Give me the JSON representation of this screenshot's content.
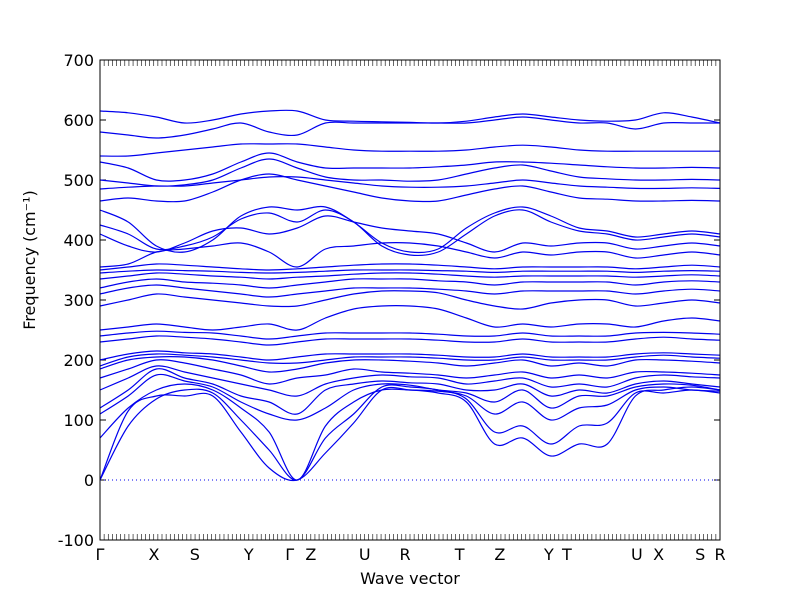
{
  "chart_data": {
    "type": "line",
    "title": "",
    "xlabel": "Wave vector",
    "ylabel": "Frequency (cm⁻¹)",
    "ylim": [
      -100,
      700
    ],
    "yticks": [
      -100,
      0,
      100,
      200,
      300,
      400,
      500,
      600,
      700
    ],
    "xticks": [
      {
        "label": "Γ",
        "pos": 0.0
      },
      {
        "label": "X",
        "pos": 0.087
      },
      {
        "label": "S",
        "pos": 0.153
      },
      {
        "label": "Y",
        "pos": 0.24
      },
      {
        "label": "Γ",
        "pos": 0.306
      },
      {
        "label": "Z",
        "pos": 0.34
      },
      {
        "label": "U",
        "pos": 0.427
      },
      {
        "label": "R",
        "pos": 0.492
      },
      {
        "label": "T",
        "pos": 0.58
      },
      {
        "label": "Z",
        "pos": 0.645
      },
      {
        "label": "Y",
        "pos": 0.724
      },
      {
        "label": "T",
        "pos": 0.753
      },
      {
        "label": "U",
        "pos": 0.866
      },
      {
        "label": "X",
        "pos": 0.901
      },
      {
        "label": "S",
        "pos": 0.968
      },
      {
        "label": "R",
        "pos": 1.0
      }
    ],
    "zero_line": 0,
    "line_color": "#0000ee",
    "series": [
      {
        "values": [
          0,
          115,
          140,
          140,
          140,
          80,
          20,
          0,
          45,
          95,
          150,
          150,
          145,
          130,
          60,
          70,
          40,
          60,
          60,
          140,
          150,
          155,
          150
        ]
      },
      {
        "values": [
          0,
          90,
          135,
          150,
          145,
          100,
          50,
          0,
          70,
          110,
          155,
          155,
          150,
          135,
          80,
          90,
          60,
          90,
          95,
          145,
          145,
          150,
          145
        ]
      },
      {
        "values": [
          70,
          120,
          150,
          160,
          150,
          120,
          80,
          0,
          90,
          130,
          150,
          150,
          148,
          140,
          110,
          130,
          100,
          120,
          125,
          150,
          155,
          150,
          148
        ]
      },
      {
        "values": [
          110,
          140,
          175,
          165,
          155,
          130,
          110,
          100,
          120,
          150,
          160,
          158,
          150,
          145,
          130,
          150,
          120,
          140,
          140,
          155,
          160,
          158,
          150
        ]
      },
      {
        "values": [
          120,
          150,
          185,
          170,
          160,
          140,
          130,
          110,
          150,
          160,
          165,
          162,
          160,
          150,
          150,
          160,
          140,
          150,
          145,
          160,
          165,
          160,
          155
        ]
      },
      {
        "values": [
          150,
          170,
          190,
          180,
          170,
          160,
          150,
          140,
          160,
          170,
          175,
          172,
          170,
          160,
          165,
          170,
          155,
          160,
          155,
          170,
          175,
          172,
          170
        ]
      },
      {
        "values": [
          170,
          185,
          200,
          195,
          185,
          175,
          160,
          170,
          175,
          185,
          180,
          178,
          175,
          170,
          175,
          180,
          170,
          175,
          170,
          180,
          180,
          178,
          175
        ]
      },
      {
        "values": [
          185,
          200,
          205,
          205,
          200,
          190,
          180,
          185,
          195,
          200,
          200,
          198,
          195,
          190,
          195,
          200,
          190,
          195,
          190,
          200,
          200,
          198,
          195
        ]
      },
      {
        "values": [
          190,
          205,
          210,
          208,
          205,
          200,
          195,
          195,
          200,
          205,
          205,
          205,
          203,
          200,
          200,
          205,
          200,
          200,
          200,
          205,
          208,
          205,
          203
        ]
      },
      {
        "values": [
          200,
          210,
          215,
          212,
          210,
          205,
          200,
          205,
          210,
          210,
          210,
          210,
          208,
          205,
          205,
          210,
          205,
          205,
          205,
          210,
          212,
          210,
          208
        ]
      },
      {
        "values": [
          230,
          235,
          240,
          238,
          235,
          230,
          225,
          230,
          235,
          235,
          235,
          235,
          233,
          230,
          230,
          235,
          230,
          230,
          230,
          235,
          238,
          235,
          233
        ]
      },
      {
        "values": [
          240,
          245,
          248,
          246,
          245,
          240,
          235,
          240,
          245,
          245,
          245,
          245,
          243,
          240,
          240,
          245,
          240,
          240,
          240,
          245,
          246,
          245,
          243
        ]
      },
      {
        "values": [
          250,
          255,
          260,
          255,
          250,
          255,
          260,
          250,
          270,
          285,
          290,
          290,
          285,
          270,
          255,
          260,
          255,
          260,
          260,
          255,
          265,
          270,
          265
        ]
      },
      {
        "values": [
          290,
          300,
          310,
          305,
          300,
          295,
          290,
          290,
          300,
          310,
          315,
          315,
          312,
          300,
          290,
          285,
          295,
          300,
          300,
          290,
          295,
          300,
          295
        ]
      },
      {
        "values": [
          310,
          320,
          325,
          320,
          315,
          310,
          305,
          310,
          315,
          320,
          320,
          320,
          318,
          315,
          310,
          315,
          315,
          315,
          315,
          310,
          315,
          318,
          315
        ]
      },
      {
        "values": [
          320,
          330,
          335,
          330,
          328,
          325,
          320,
          325,
          330,
          335,
          335,
          335,
          332,
          330,
          325,
          330,
          330,
          330,
          330,
          325,
          330,
          332,
          330
        ]
      },
      {
        "values": [
          335,
          340,
          345,
          343,
          340,
          338,
          335,
          338,
          340,
          343,
          345,
          345,
          343,
          340,
          338,
          340,
          340,
          340,
          340,
          338,
          340,
          342,
          340
        ]
      },
      {
        "values": [
          345,
          348,
          350,
          349,
          348,
          346,
          345,
          346,
          348,
          350,
          350,
          350,
          349,
          348,
          346,
          348,
          348,
          348,
          348,
          346,
          348,
          349,
          348
        ]
      },
      {
        "values": [
          350,
          355,
          360,
          358,
          355,
          352,
          350,
          352,
          355,
          358,
          360,
          360,
          358,
          355,
          352,
          355,
          355,
          355,
          355,
          352,
          355,
          358,
          355
        ]
      },
      {
        "values": [
          355,
          360,
          380,
          385,
          390,
          395,
          380,
          355,
          385,
          390,
          395,
          395,
          390,
          380,
          370,
          380,
          375,
          380,
          380,
          370,
          375,
          380,
          375
        ]
      },
      {
        "values": [
          410,
          390,
          380,
          395,
          415,
          420,
          410,
          420,
          440,
          430,
          420,
          415,
          410,
          395,
          380,
          395,
          390,
          395,
          395,
          385,
          390,
          395,
          390
        ]
      },
      {
        "values": [
          425,
          410,
          385,
          390,
          405,
          435,
          445,
          430,
          450,
          430,
          390,
          375,
          380,
          410,
          440,
          450,
          430,
          415,
          410,
          400,
          405,
          410,
          405
        ]
      },
      {
        "values": [
          450,
          430,
          390,
          380,
          400,
          440,
          455,
          450,
          455,
          430,
          395,
          380,
          385,
          420,
          445,
          455,
          440,
          420,
          415,
          405,
          410,
          415,
          410
        ]
      },
      {
        "values": [
          465,
          470,
          465,
          465,
          480,
          500,
          510,
          500,
          490,
          480,
          470,
          465,
          465,
          475,
          485,
          490,
          480,
          470,
          468,
          465,
          465,
          466,
          465
        ]
      },
      {
        "values": [
          485,
          488,
          490,
          490,
          495,
          500,
          505,
          505,
          500,
          495,
          490,
          488,
          488,
          490,
          495,
          500,
          495,
          490,
          488,
          486,
          486,
          487,
          486
        ]
      },
      {
        "values": [
          500,
          495,
          490,
          492,
          500,
          520,
          535,
          520,
          505,
          500,
          500,
          498,
          500,
          510,
          520,
          525,
          515,
          505,
          502,
          500,
          500,
          501,
          500
        ]
      },
      {
        "values": [
          530,
          520,
          500,
          500,
          510,
          530,
          545,
          530,
          520,
          520,
          520,
          520,
          522,
          525,
          530,
          530,
          528,
          525,
          522,
          520,
          520,
          521,
          520
        ]
      },
      {
        "values": [
          540,
          540,
          545,
          550,
          555,
          560,
          560,
          560,
          555,
          550,
          548,
          548,
          548,
          550,
          555,
          558,
          555,
          550,
          548,
          548,
          548,
          548,
          548
        ]
      },
      {
        "values": [
          580,
          575,
          570,
          575,
          585,
          595,
          580,
          575,
          595,
          595,
          595,
          595,
          595,
          595,
          600,
          605,
          600,
          595,
          595,
          585,
          595,
          595,
          595
        ]
      },
      {
        "values": [
          615,
          612,
          605,
          595,
          600,
          610,
          615,
          615,
          600,
          598,
          597,
          596,
          595,
          598,
          605,
          610,
          605,
          600,
          598,
          600,
          612,
          605,
          595
        ]
      }
    ]
  }
}
